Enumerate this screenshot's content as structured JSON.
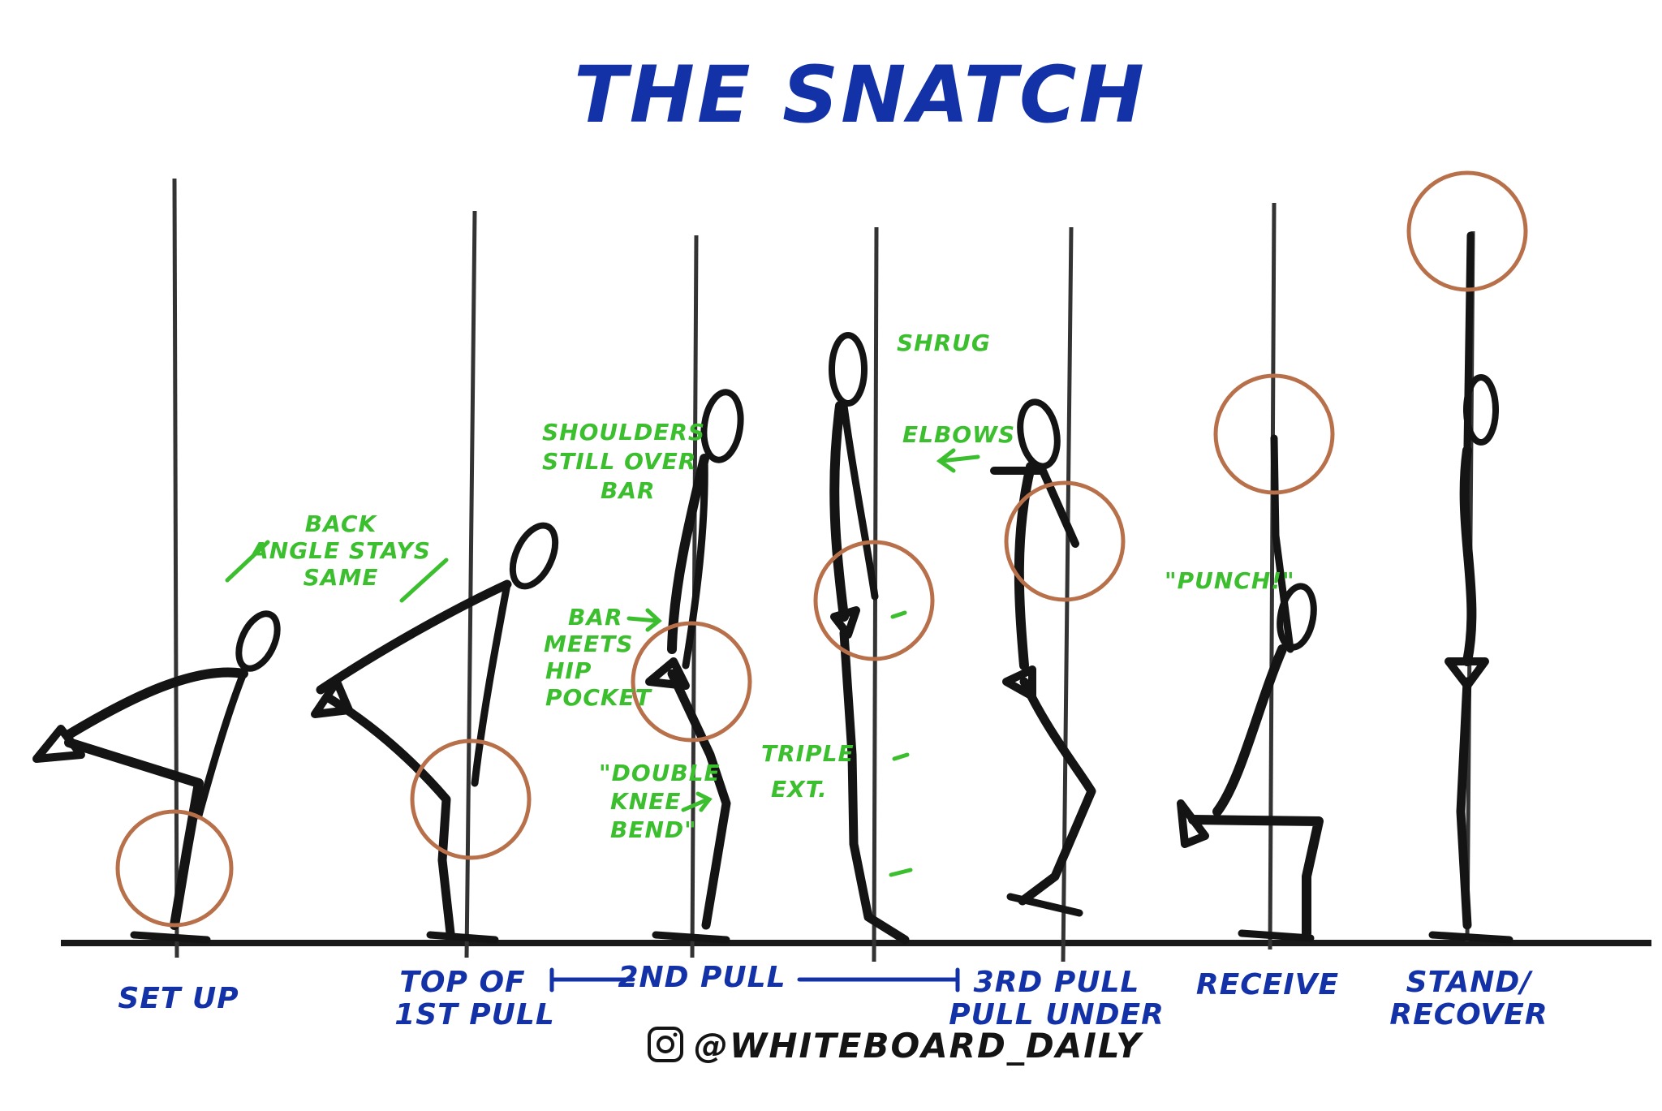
{
  "title": "THE SNATCH",
  "colors": {
    "title_ink": "#1432a8",
    "note_ink": "#3cbf2e",
    "figure_ink": "#141414",
    "bar_ring": "#b8704a"
  },
  "phases": [
    {
      "lines": [
        "SET UP"
      ]
    },
    {
      "lines": [
        "TOP OF",
        "1ST PULL"
      ]
    },
    {
      "lines": [
        "2ND PULL"
      ]
    },
    {
      "lines": [
        "3RD PULL",
        "PULL UNDER"
      ]
    },
    {
      "lines": [
        "RECEIVE"
      ]
    },
    {
      "lines": [
        "STAND/",
        "RECOVER"
      ]
    }
  ],
  "notes": {
    "back_angle": [
      "BACK",
      "ANGLE STAYS",
      "SAME"
    ],
    "shoulders": [
      "SHOULDERS",
      "STILL OVER",
      "BAR"
    ],
    "bar_meets": [
      "BAR",
      "MEETS",
      "HIP",
      "POCKET"
    ],
    "double_knee": [
      "\"DOUBLE",
      "KNEE",
      "BEND\""
    ],
    "shrug": "SHRUG",
    "elbows": "ELBOWS",
    "triple_ext": [
      "TRIPLE",
      "EXT."
    ],
    "punch": "\"PUNCH!\""
  },
  "footer": {
    "icon": "instagram-icon",
    "handle": "@WHITEBOARD_DAILY"
  }
}
